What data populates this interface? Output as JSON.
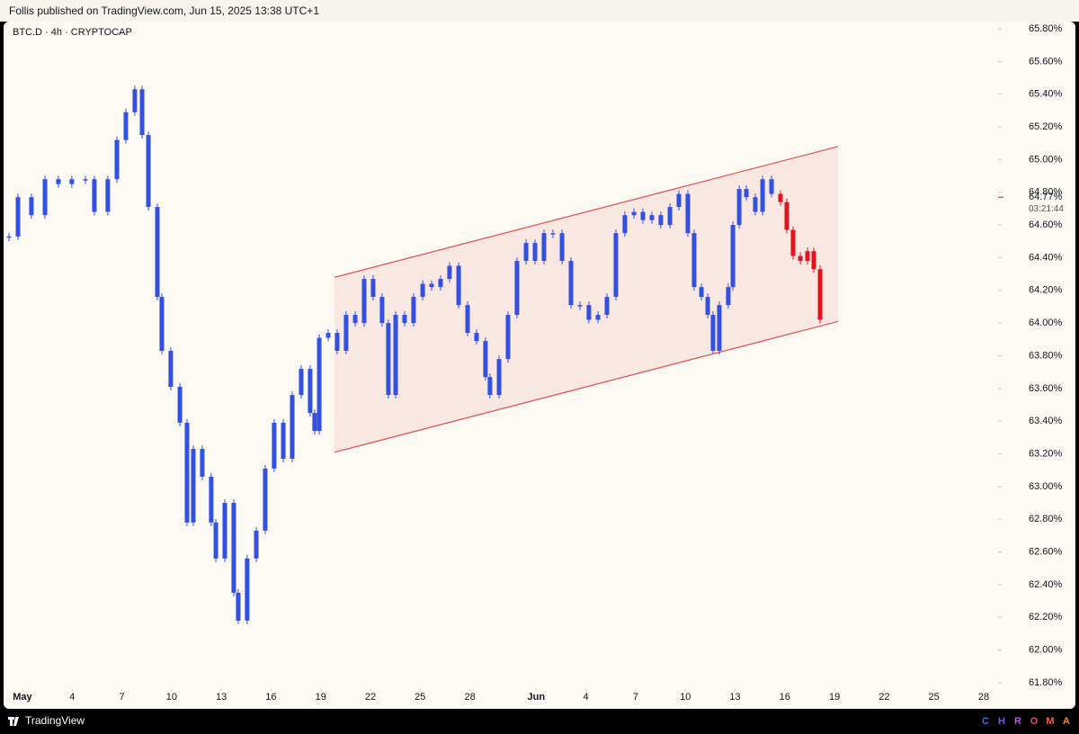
{
  "header": {
    "attribution": "Follis published on TradingView.com, Jun 15, 2025 13:38 UTC+1"
  },
  "chart_data": {
    "type": "candlestick",
    "title": "BTC.D · 4h · CRYPTOCAP",
    "x": [
      -0.81,
      -0.27,
      0.54,
      1.36,
      2.17,
      2.98,
      3.8,
      4.34,
      5.15,
      5.7,
      6.24,
      6.78,
      7.22,
      7.6,
      8.14,
      8.41,
      8.95,
      9.5,
      9.93,
      10.31,
      10.85,
      11.39,
      11.67,
      12.21,
      12.75,
      13.02,
      13.56,
      14.11,
      14.65,
      15.19,
      15.74,
      16.28,
      16.82,
      17.36,
      17.63,
      17.91,
      18.45,
      18.99,
      19.53,
      20.08,
      20.62,
      21.16,
      21.7,
      22.08,
      22.52,
      23.06,
      23.6,
      24.15,
      24.69,
      25.23,
      25.77,
      26.32,
      26.86,
      27.4,
      27.94,
      28.21,
      28.76,
      29.3,
      29.84,
      30.39,
      30.93,
      31.47,
      32.01,
      32.56,
      33.1,
      33.64,
      34.18,
      34.73,
      35.27,
      35.81,
      36.35,
      36.9,
      37.44,
      37.98,
      38.52,
      39.07,
      39.61,
      40.15,
      40.53,
      40.97,
      41.35,
      41.67,
      42.05,
      42.59,
      42.87,
      43.25,
      43.68,
      44.22,
      44.66,
      45.2,
      45.74,
      46.12,
      46.5,
      46.94,
      47.37,
      47.75,
      48.13
    ],
    "series": [
      {
        "color": "#3450e0",
        "values": [
          64.53,
          64.77,
          64.66,
          64.88,
          64.85,
          64.88,
          64.88,
          64.68,
          64.88,
          65.12,
          65.29,
          65.43,
          65.15,
          64.71,
          64.16,
          63.83,
          63.61,
          63.39,
          62.78,
          63.23,
          63.06,
          62.78,
          62.56,
          62.9,
          62.35,
          62.18,
          62.56,
          62.73,
          63.11,
          63.39,
          63.17,
          63.56,
          63.72,
          63.45,
          63.34,
          63.91,
          63.94,
          63.83,
          64.05,
          64.0,
          64.27,
          64.16,
          64.0,
          63.56,
          64.05,
          64.0,
          64.16,
          64.24,
          64.22,
          64.27,
          64.35,
          64.11,
          63.94,
          63.89,
          63.67,
          63.56,
          63.78,
          64.05,
          64.38,
          64.49,
          64.38,
          64.55,
          64.55,
          64.38,
          64.11,
          64.11,
          64.02,
          64.05,
          64.16,
          64.55,
          64.66,
          64.68,
          64.63,
          64.66,
          64.6,
          64.71,
          64.79,
          64.55,
          64.22,
          64.16,
          64.05,
          63.83,
          64.11,
          64.22,
          64.6,
          64.82,
          64.77,
          64.68,
          64.88,
          64.79,
          null,
          null,
          null,
          null,
          null,
          null,
          null
        ]
      },
      {
        "color": "#e0141e",
        "values": [
          null,
          null,
          null,
          null,
          null,
          null,
          null,
          null,
          null,
          null,
          null,
          null,
          null,
          null,
          null,
          null,
          null,
          null,
          null,
          null,
          null,
          null,
          null,
          null,
          null,
          null,
          null,
          null,
          null,
          null,
          null,
          null,
          null,
          null,
          null,
          null,
          null,
          null,
          null,
          null,
          null,
          null,
          null,
          null,
          null,
          null,
          null,
          null,
          null,
          null,
          null,
          null,
          null,
          null,
          null,
          null,
          null,
          null,
          null,
          null,
          null,
          null,
          null,
          null,
          null,
          null,
          null,
          null,
          null,
          null,
          null,
          null,
          null,
          null,
          null,
          null,
          null,
          null,
          null,
          null,
          null,
          null,
          null,
          null,
          null,
          null,
          null,
          null,
          null,
          null,
          64.74,
          64.57,
          64.41,
          64.38,
          64.44,
          64.33,
          64.02
        ]
      }
    ],
    "channel": {
      "color": "#e05a5a",
      "x": [
        18.83,
        49.21
      ],
      "upper": [
        64.28,
        65.08
      ],
      "lower": [
        63.21,
        64.01
      ]
    },
    "xlim": [
      -0.92,
      58.87
    ],
    "xticks": [
      {
        "value": 0,
        "label": "May"
      },
      {
        "value": 3,
        "label": "4"
      },
      {
        "value": 6,
        "label": "7"
      },
      {
        "value": 9,
        "label": "10"
      },
      {
        "value": 12,
        "label": "13"
      },
      {
        "value": 15,
        "label": "16"
      },
      {
        "value": 18,
        "label": "19"
      },
      {
        "value": 21,
        "label": "22"
      },
      {
        "value": 24,
        "label": "25"
      },
      {
        "value": 27,
        "label": "28"
      },
      {
        "value": 31,
        "label": "Jun"
      },
      {
        "value": 34,
        "label": "4"
      },
      {
        "value": 37,
        "label": "7"
      },
      {
        "value": 40,
        "label": "10"
      },
      {
        "value": 43,
        "label": "13"
      },
      {
        "value": 46,
        "label": "16"
      },
      {
        "value": 49,
        "label": "19"
      },
      {
        "value": 52,
        "label": "22"
      },
      {
        "value": 55,
        "label": "25"
      },
      {
        "value": 58,
        "label": "28"
      }
    ],
    "ylim": [
      61.8,
      65.8
    ],
    "yticks": [
      {
        "value": 65.8,
        "label": "65.80%"
      },
      {
        "value": 65.6,
        "label": "65.60%"
      },
      {
        "value": 65.4,
        "label": "65.40%"
      },
      {
        "value": 65.2,
        "label": "65.20%"
      },
      {
        "value": 65.0,
        "label": "65.00%"
      },
      {
        "value": 64.8,
        "label": "64.80%"
      },
      {
        "value": 64.6,
        "label": "64.60%"
      },
      {
        "value": 64.4,
        "label": "64.40%"
      },
      {
        "value": 64.2,
        "label": "64.20%"
      },
      {
        "value": 64.0,
        "label": "64.00%"
      },
      {
        "value": 63.8,
        "label": "63.80%"
      },
      {
        "value": 63.6,
        "label": "63.60%"
      },
      {
        "value": 63.4,
        "label": "63.40%"
      },
      {
        "value": 63.2,
        "label": "63.20%"
      },
      {
        "value": 63.0,
        "label": "63.00%"
      },
      {
        "value": 62.8,
        "label": "62.80%"
      },
      {
        "value": 62.6,
        "label": "62.60%"
      },
      {
        "value": 62.4,
        "label": "62.40%"
      },
      {
        "value": 62.2,
        "label": "62.20%"
      },
      {
        "value": 62.0,
        "label": "62.00%"
      },
      {
        "value": 61.8,
        "label": "61.80%"
      }
    ],
    "last_price": {
      "value": 64.77,
      "label": "64.77%",
      "countdown": "03:21:44"
    }
  },
  "footer": {
    "brand": "TradingView",
    "chroma": "CHROMA"
  }
}
